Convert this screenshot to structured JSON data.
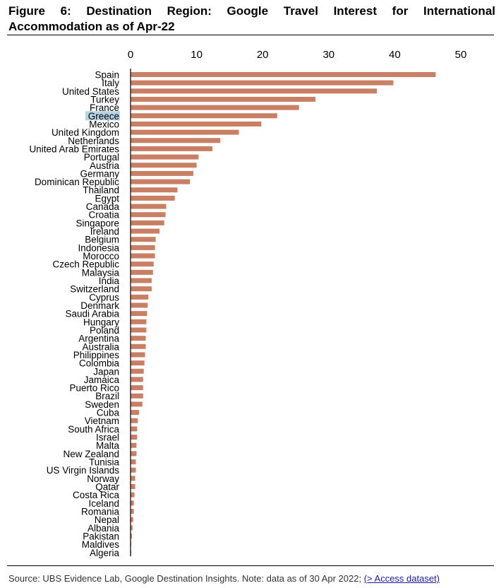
{
  "figure": {
    "title_line1": "Figure 6: Destination Region: Google Travel Interest for International",
    "title_line2": "Accommodation as of Apr-22",
    "source_text": "Source: UBS Evidence Lab, Google Destination Insights. Note: data as of 30 Apr 2022; ",
    "source_link": "(> Access dataset)"
  },
  "colors": {
    "bar": "#C97F63",
    "highlight": "#B7D3E6",
    "axis": "#000000"
  },
  "chart_data": {
    "type": "bar",
    "orientation": "horizontal",
    "title": "Destination Region: Google Travel Interest for International Accommodation as of Apr-22",
    "xlim": [
      0,
      50
    ],
    "xticks": [
      0,
      10,
      20,
      30,
      40,
      50
    ],
    "axis_position": "top",
    "grid": false,
    "highlighted_category": "Greece",
    "categories": [
      "Spain",
      "Italy",
      "United States",
      "Turkey",
      "France",
      "Greece",
      "Mexico",
      "United Kingdom",
      "Netherlands",
      "United Arab Emirates",
      "Portugal",
      "Austria",
      "Germany",
      "Dominican Republic",
      "Thailand",
      "Egypt",
      "Canada",
      "Croatia",
      "Singapore",
      "Ireland",
      "Belgium",
      "Indonesia",
      "Morocco",
      "Czech Republic",
      "Malaysia",
      "India",
      "Switzerland",
      "Cyprus",
      "Denmark",
      "Saudi Arabia",
      "Hungary",
      "Poland",
      "Argentina",
      "Australia",
      "Philippines",
      "Colombia",
      "Japan",
      "Jamaica",
      "Puerto Rico",
      "Brazil",
      "Sweden",
      "Cuba",
      "Vietnam",
      "South Africa",
      "Israel",
      "Malta",
      "New Zealand",
      "Tunisia",
      "US Virgin Islands",
      "Norway",
      "Qatar",
      "Costa Rica",
      "Iceland",
      "Romania",
      "Nepal",
      "Albania",
      "Pakistan",
      "Maldives",
      "Algeria"
    ],
    "values": [
      46.2,
      39.8,
      37.3,
      28.0,
      25.5,
      22.2,
      19.8,
      16.4,
      13.6,
      12.4,
      10.3,
      10.0,
      9.5,
      9.0,
      7.1,
      6.7,
      5.4,
      5.3,
      5.1,
      4.4,
      3.8,
      3.7,
      3.7,
      3.5,
      3.4,
      3.2,
      3.2,
      2.7,
      2.6,
      2.5,
      2.4,
      2.4,
      2.3,
      2.3,
      2.2,
      2.1,
      2.0,
      1.9,
      1.9,
      1.9,
      1.8,
      1.3,
      1.1,
      1.0,
      1.0,
      0.9,
      0.9,
      0.8,
      0.8,
      0.7,
      0.7,
      0.6,
      0.5,
      0.5,
      0.4,
      0.3,
      0.2,
      0.1,
      0.1
    ]
  }
}
